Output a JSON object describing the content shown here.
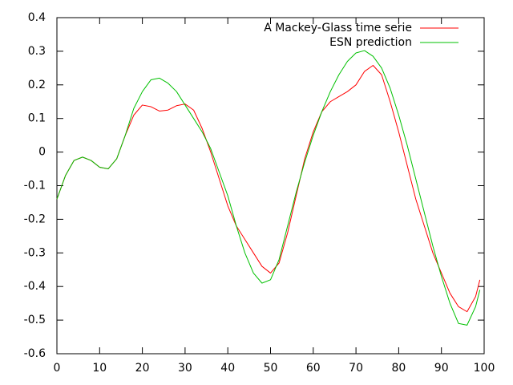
{
  "chart_data": {
    "type": "line",
    "x": [
      0,
      2,
      4,
      6,
      8,
      10,
      12,
      14,
      16,
      18,
      20,
      22,
      24,
      26,
      28,
      30,
      32,
      34,
      36,
      38,
      40,
      42,
      44,
      46,
      48,
      50,
      52,
      54,
      56,
      58,
      60,
      62,
      64,
      66,
      68,
      70,
      72,
      74,
      76,
      78,
      80,
      82,
      84,
      86,
      88,
      90,
      92,
      94,
      96,
      98,
      99
    ],
    "series": [
      {
        "name": "A Mackey-Glass time serie",
        "color": "#ff0000",
        "values": [
          -0.14,
          -0.07,
          -0.025,
          -0.015,
          -0.025,
          -0.045,
          -0.05,
          -0.02,
          0.05,
          0.11,
          0.14,
          0.135,
          0.122,
          0.125,
          0.138,
          0.143,
          0.125,
          0.07,
          0.0,
          -0.08,
          -0.16,
          -0.22,
          -0.26,
          -0.3,
          -0.34,
          -0.36,
          -0.33,
          -0.24,
          -0.13,
          -0.02,
          0.06,
          0.12,
          0.15,
          0.165,
          0.18,
          0.2,
          0.24,
          0.258,
          0.23,
          0.15,
          0.06,
          -0.04,
          -0.14,
          -0.22,
          -0.3,
          -0.36,
          -0.42,
          -0.46,
          -0.475,
          -0.43,
          -0.38
        ]
      },
      {
        "name": "ESN prediction",
        "color": "#00c000",
        "values": [
          -0.14,
          -0.07,
          -0.025,
          -0.015,
          -0.025,
          -0.045,
          -0.05,
          -0.02,
          0.05,
          0.13,
          0.18,
          0.215,
          0.22,
          0.205,
          0.18,
          0.14,
          0.1,
          0.06,
          0.01,
          -0.06,
          -0.13,
          -0.22,
          -0.3,
          -0.36,
          -0.39,
          -0.38,
          -0.32,
          -0.22,
          -0.12,
          -0.03,
          0.05,
          0.12,
          0.18,
          0.23,
          0.27,
          0.295,
          0.302,
          0.285,
          0.25,
          0.19,
          0.11,
          0.02,
          -0.08,
          -0.18,
          -0.28,
          -0.37,
          -0.45,
          -0.51,
          -0.515,
          -0.46,
          -0.41
        ]
      }
    ],
    "xlim": [
      0,
      100
    ],
    "xticks": [
      0,
      10,
      20,
      30,
      40,
      50,
      60,
      70,
      80,
      90,
      100
    ],
    "ylim": [
      -0.6,
      0.4
    ],
    "yticks": [
      -0.6,
      -0.5,
      -0.4,
      -0.3,
      -0.2,
      -0.1,
      0,
      0.1,
      0.2,
      0.3,
      0.4
    ],
    "legend": "top-right"
  }
}
